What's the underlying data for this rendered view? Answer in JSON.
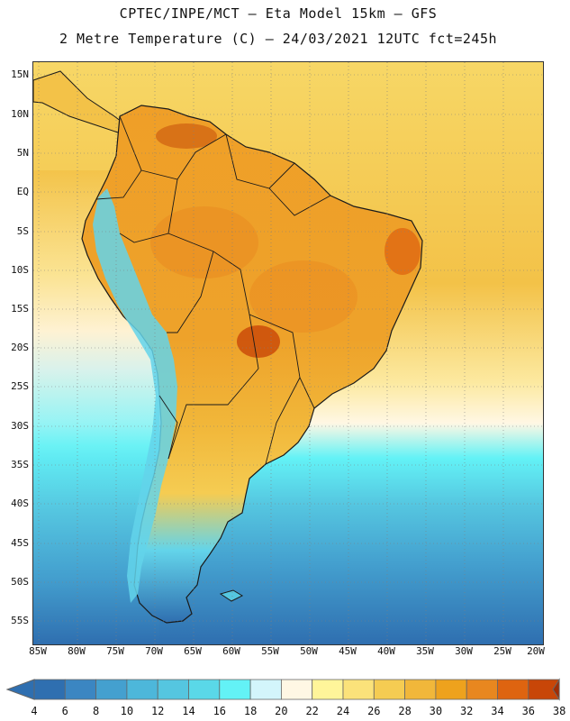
{
  "header": {
    "line1": "CPTEC/INPE/MCT –  Eta Model 15km – GFS",
    "line2": "2 Metre Temperature (C) – 24/03/2021 12UTC fct=245h"
  },
  "axes": {
    "lat_labels": [
      "15N",
      "10N",
      "5N",
      "EQ",
      "5S",
      "10S",
      "15S",
      "20S",
      "25S",
      "30S",
      "35S",
      "40S",
      "45S",
      "50S",
      "55S"
    ],
    "lon_labels": [
      "85W",
      "80W",
      "75W",
      "70W",
      "65W",
      "60W",
      "55W",
      "50W",
      "45W",
      "40W",
      "35W",
      "30W",
      "25W",
      "20W"
    ]
  },
  "colorbar": {
    "labels": [
      "4",
      "6",
      "8",
      "10",
      "12",
      "14",
      "16",
      "18",
      "20",
      "22",
      "24",
      "26",
      "28",
      "30",
      "32",
      "34",
      "36",
      "38"
    ],
    "colors": [
      "#2f6fb0",
      "#3b86c2",
      "#44a0cf",
      "#4db7da",
      "#55c6e0",
      "#5ad8e8",
      "#63f2f6",
      "#d3f5fb",
      "#fff7e4",
      "#fff59a",
      "#fbe27a",
      "#f5cc52",
      "#f1b73a",
      "#eea21d",
      "#e8871f",
      "#de6410",
      "#c84608",
      "#a02c04"
    ]
  },
  "map": {
    "region": "South America",
    "colors": {
      "ocean_warm": "#f5d05a",
      "ocean_hot": "#f1b73a",
      "land_base": "#f1b73a",
      "land_hot": "#e5901f",
      "land_very_hot": "#d36a14",
      "andes_cold": "#63d4ea",
      "border": "#1a1a1a",
      "grid": "#7f7f7f"
    }
  }
}
